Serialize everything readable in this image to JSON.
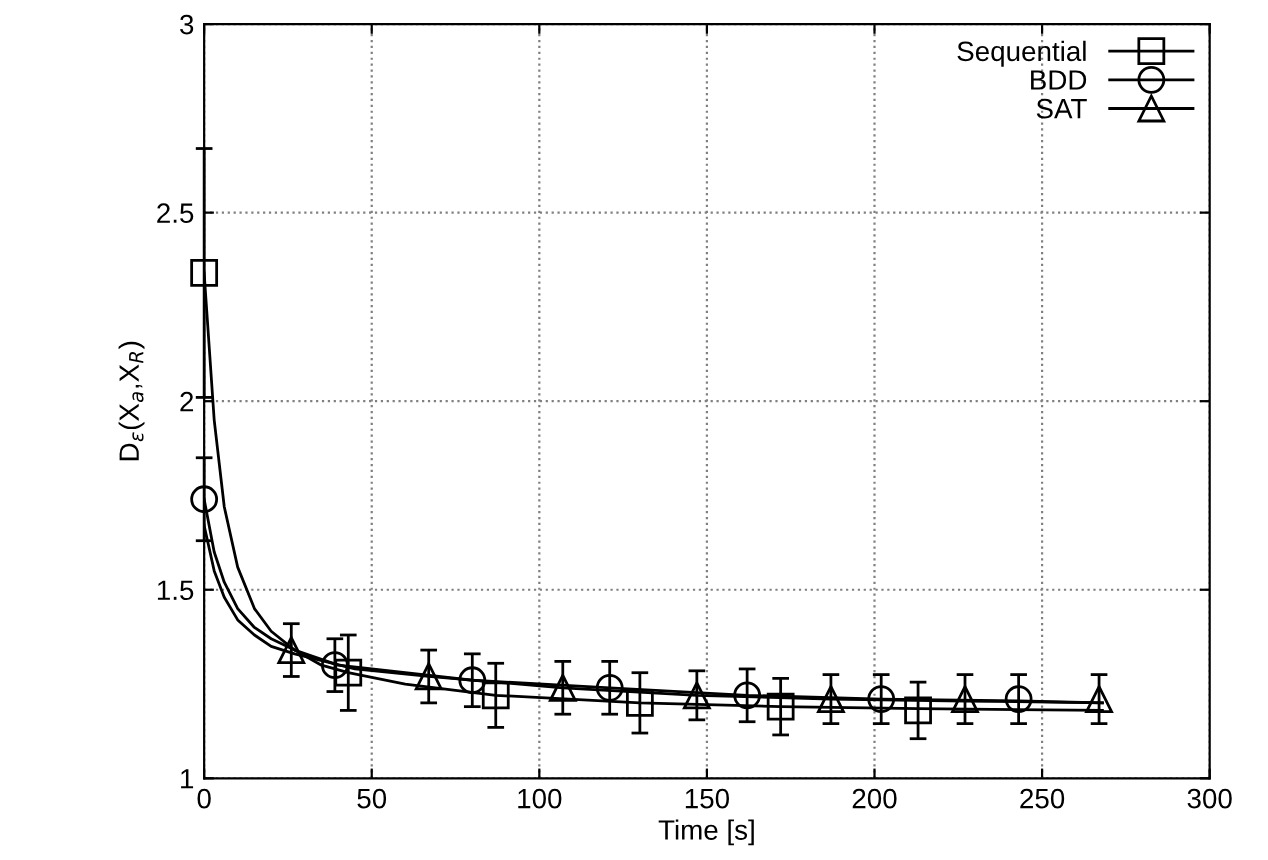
{
  "chart_data": {
    "type": "scatter",
    "xlabel": "Time [s]",
    "ylabel": "D$_{ε}$(X$_{a}$,X$_{R}$)",
    "xlim": [
      0,
      300
    ],
    "xticks": [
      0,
      50,
      100,
      150,
      200,
      250,
      300
    ],
    "ylim": [
      1,
      3
    ],
    "yticks": [
      1,
      1.5,
      2,
      2.5,
      3
    ],
    "grid": true,
    "legend": "top right",
    "series": [
      {
        "name": "Sequential",
        "marker": "square",
        "color": "#000000",
        "x": [
          0,
          43,
          87,
          130,
          172,
          213
        ],
        "values": [
          2.34,
          1.28,
          1.22,
          1.2,
          1.19,
          1.18
        ],
        "errors": [
          0.33,
          0.1,
          0.085,
          0.08,
          0.075,
          0.075
        ]
      },
      {
        "name": "BDD",
        "marker": "circle",
        "color": "#000000",
        "x": [
          0,
          39,
          80,
          121,
          162,
          202,
          243
        ],
        "values": [
          1.74,
          1.3,
          1.26,
          1.24,
          1.22,
          1.21,
          1.21
        ],
        "errors": [
          0.11,
          0.07,
          0.07,
          0.07,
          0.07,
          0.065,
          0.065
        ]
      },
      {
        "name": "SAT",
        "marker": "triangle",
        "color": "#000000",
        "x": [
          26,
          67,
          107,
          147,
          187,
          227,
          267
        ],
        "values": [
          1.34,
          1.27,
          1.24,
          1.22,
          1.21,
          1.21,
          1.21
        ],
        "errors": [
          0.07,
          0.07,
          0.07,
          0.065,
          0.065,
          0.065,
          0.065
        ]
      },
      {
        "type": "line",
        "line_style": "solid",
        "color": "#000000",
        "x": [
          0,
          3,
          6,
          10,
          15,
          20,
          27,
          35,
          43,
          60,
          87,
          130,
          172,
          213,
          268
        ],
        "values": [
          2.34,
          1.95,
          1.72,
          1.56,
          1.45,
          1.39,
          1.34,
          1.3,
          1.28,
          1.25,
          1.22,
          1.2,
          1.19,
          1.185,
          1.18
        ]
      },
      {
        "type": "line",
        "line_style": "solid",
        "color": "#000000",
        "x": [
          0,
          3,
          6,
          10,
          15,
          20,
          27,
          40,
          60,
          80,
          121,
          162,
          202,
          243,
          268
        ],
        "values": [
          1.74,
          1.6,
          1.52,
          1.45,
          1.4,
          1.37,
          1.34,
          1.3,
          1.28,
          1.26,
          1.24,
          1.22,
          1.21,
          1.205,
          1.2
        ]
      },
      {
        "type": "line",
        "line_style": "solid",
        "color": "#000000",
        "x": [
          0,
          3,
          6,
          10,
          15,
          20,
          27,
          45,
          67,
          107,
          147,
          187,
          227,
          268
        ],
        "values": [
          1.67,
          1.55,
          1.48,
          1.42,
          1.38,
          1.35,
          1.33,
          1.29,
          1.27,
          1.24,
          1.22,
          1.21,
          1.205,
          1.2
        ]
      }
    ]
  }
}
